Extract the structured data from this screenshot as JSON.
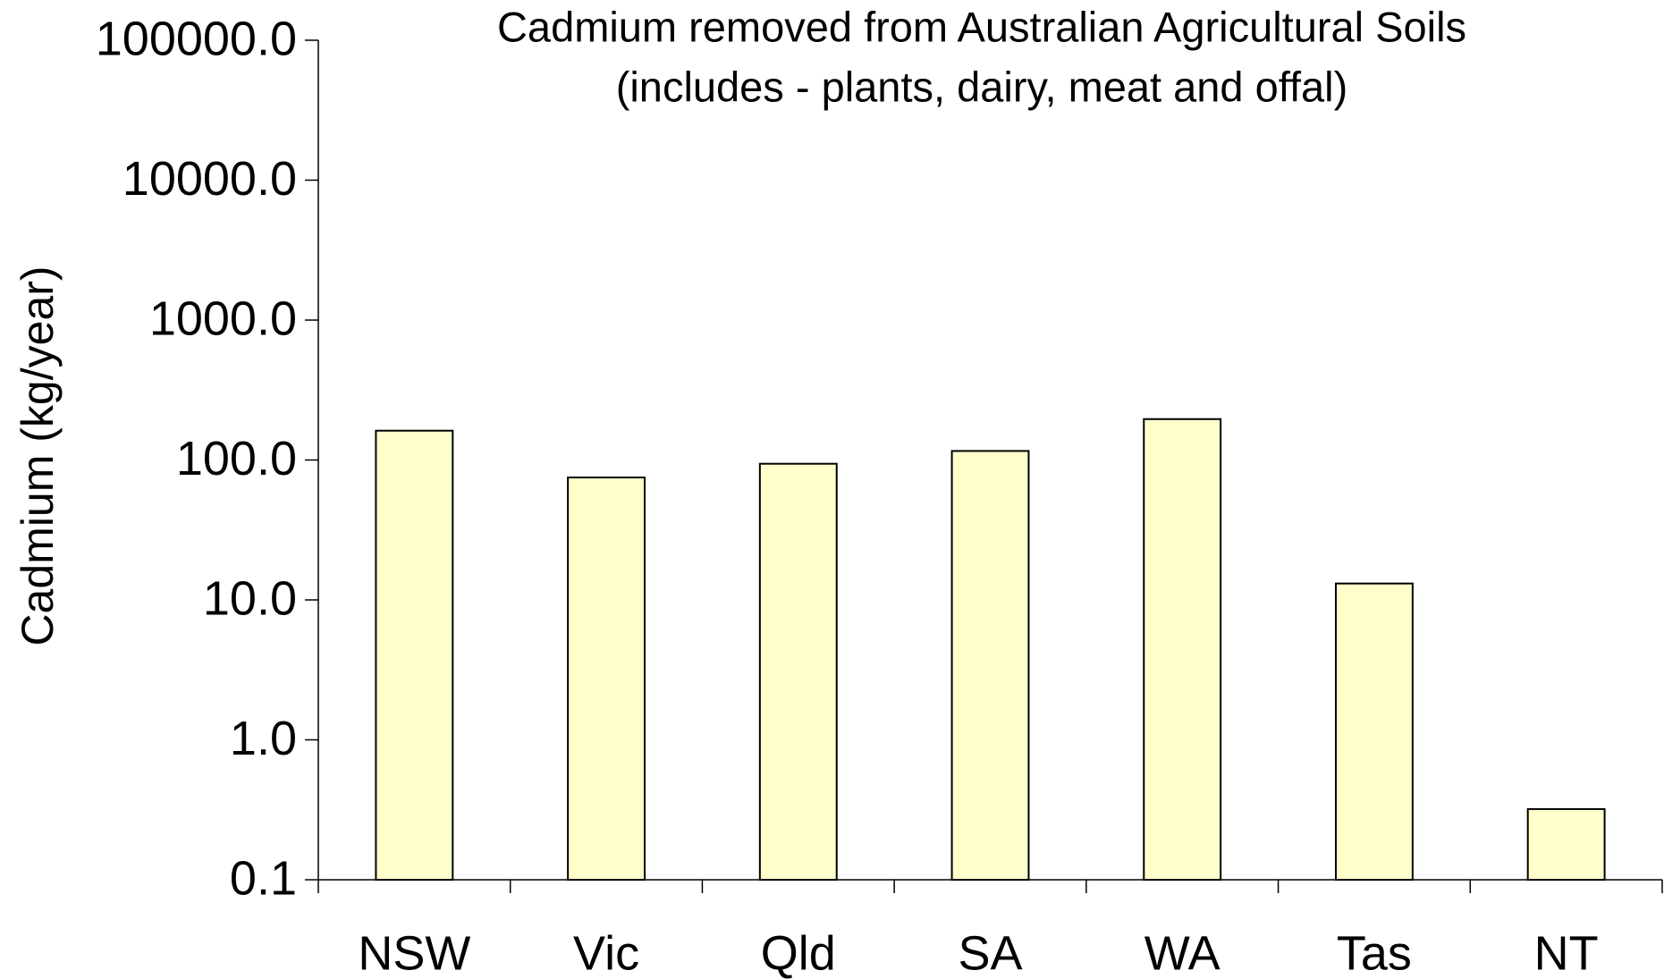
{
  "chart_data": {
    "type": "bar",
    "title": "Cadmium removed from Australian Agricultural Soils",
    "subtitle": "(includes - plants, dairy, meat and offal)",
    "y_label": "Cadmium (kg/year)",
    "categories": [
      "NSW",
      "Vic",
      "Qld",
      "SA",
      "WA",
      "Tas",
      "NT"
    ],
    "values": [
      162,
      75,
      94,
      116,
      196,
      13.1,
      0.32
    ],
    "color": "#ffffcc",
    "log_scale": true,
    "ylim": [
      0.1,
      100000
    ],
    "yticks": [
      0.1,
      {
        "value": 1,
        "label": "1.0"
      },
      {
        "value": 10,
        "label": "10.0"
      },
      {
        "value": 100,
        "label": "100.0"
      },
      {
        "value": 1000,
        "label": "1000.0"
      },
      {
        "value": 10000,
        "label": "10000.0"
      },
      {
        "value": 100000,
        "label": "100000.0"
      }
    ],
    "grid": false
  }
}
